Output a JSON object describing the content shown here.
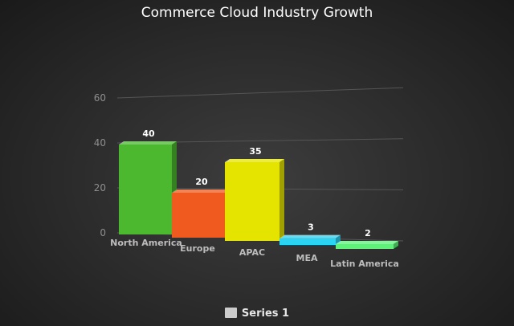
{
  "chart_data": {
    "type": "bar",
    "title": "Commerce Cloud Industry Growth",
    "categories": [
      "North America",
      "Europe",
      "APAC",
      "MEA",
      "Latin America"
    ],
    "series": [
      {
        "name": "Series 1",
        "values": [
          40,
          20,
          35,
          3,
          2
        ]
      }
    ],
    "colors": [
      "#4bb830",
      "#f05a1e",
      "#e4e400",
      "#2cd4f4",
      "#5ef27a"
    ],
    "ylim": [
      0,
      60
    ],
    "yticks": [
      0,
      20,
      40,
      60
    ],
    "grid": true,
    "legend": "bottom-center",
    "style": "3d"
  }
}
